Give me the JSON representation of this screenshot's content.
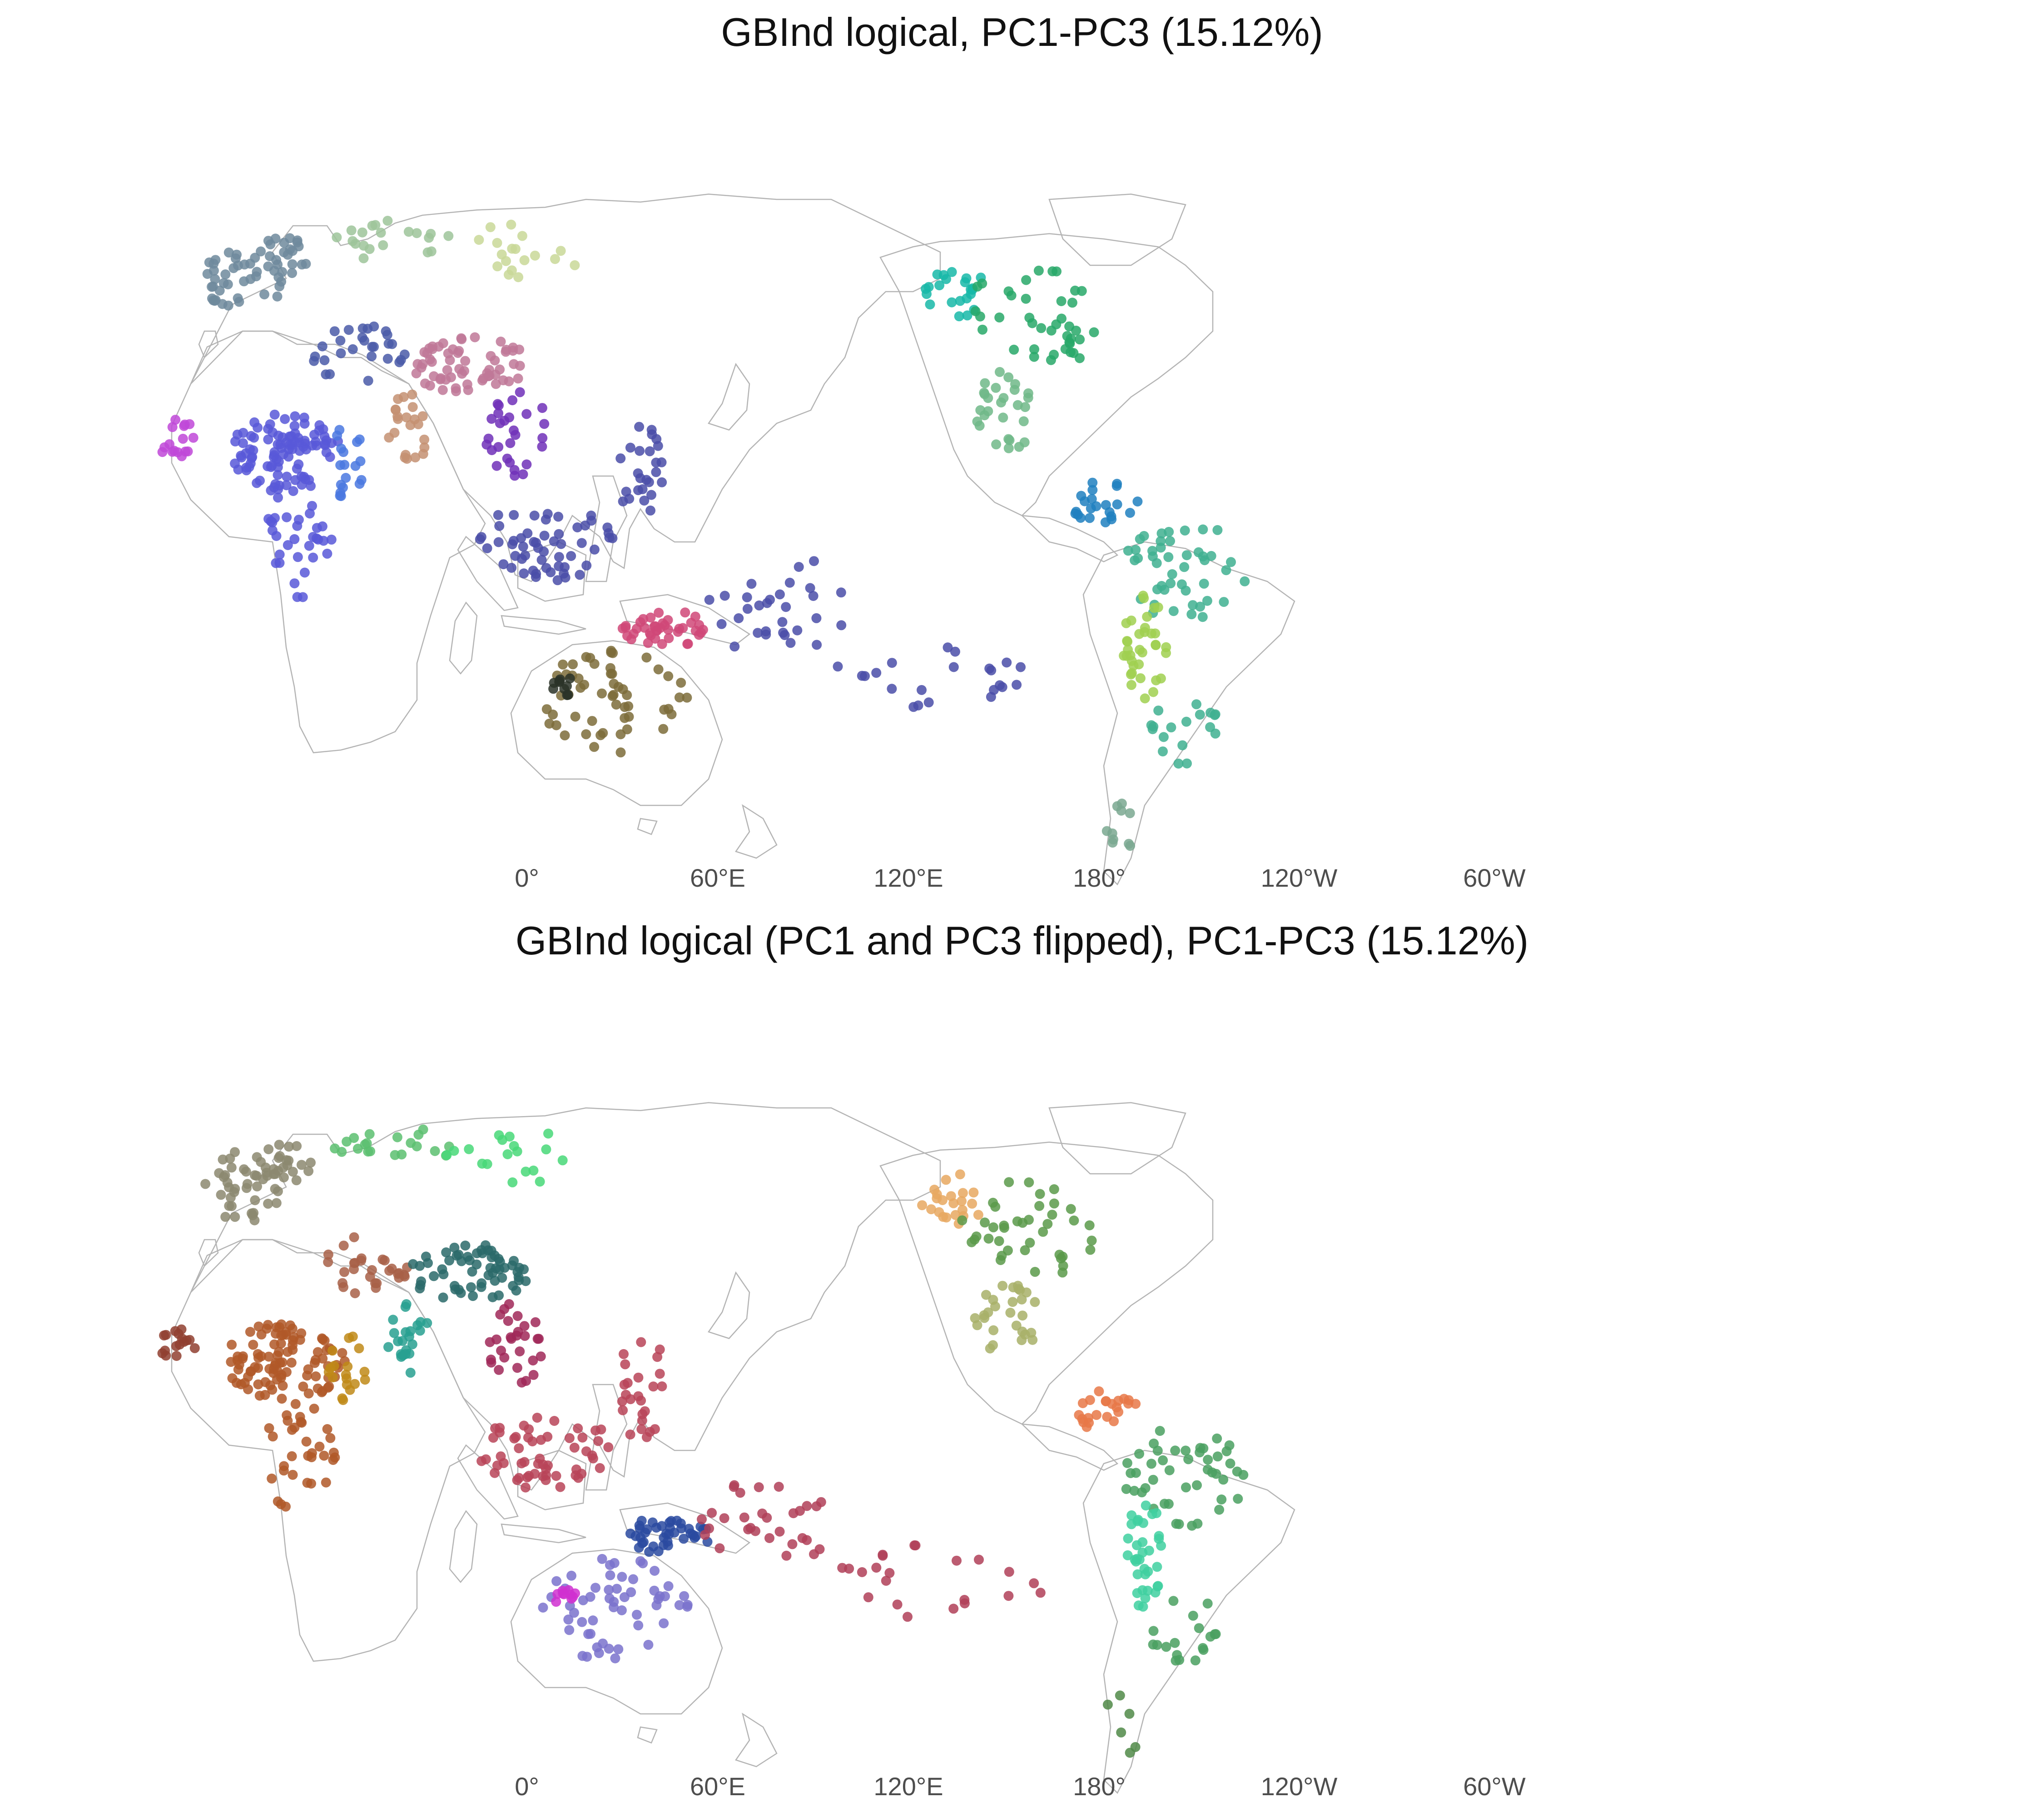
{
  "maps": [
    {
      "title": "GBInd logical, PC1-PC3 (15.12%)",
      "lon_ticks": [
        "0°",
        "60°E",
        "120°E",
        "180°",
        "120°W",
        "60°W"
      ],
      "palette": {
        "europe": "#6e8a9c",
        "north_eurasia": "#9ec49a",
        "siberia": "#c9d898",
        "west_africa": "#c048d8",
        "central_africa": "#5858d8",
        "east_africa": "#4a78e0",
        "near_east": "#4a5aa8",
        "south_asia": "#c49072",
        "east_asia": "#c07898",
        "mainland_se_asia": "#7030b8",
        "island_se_asia": "#4a4ea8",
        "new_guinea": "#d04878",
        "pacific": "#4a4ea8",
        "australia": "#7c6c3a",
        "australia_north": "#2a3228",
        "nw_america": "#18b8a8",
        "north_america": "#28a868",
        "mesoamerica": "#70b888",
        "central_america": "#2080c0",
        "south_america": "#40b090",
        "andes": "#a0d050",
        "patagonia": "#7aa890",
        "land_outline": "#b4b4b4"
      }
    },
    {
      "title": "GBInd logical (PC1 and PC3 flipped), PC1-PC3 (15.12%)",
      "lon_ticks": [
        "0°",
        "60°E",
        "120°E",
        "180°",
        "120°W",
        "60°W"
      ],
      "palette": {
        "europe": "#8c8870",
        "north_eurasia": "#5cc070",
        "siberia": "#48d878",
        "west_africa": "#904030",
        "central_africa": "#b05828",
        "east_africa": "#c08a18",
        "near_east": "#a86048",
        "south_asia": "#28a090",
        "east_asia": "#2a6a6a",
        "mainland_se_asia": "#a02858",
        "island_se_asia": "#b84458",
        "new_guinea": "#2a4aa0",
        "pacific": "#b04058",
        "australia": "#7a72cc",
        "australia_north": "#d030d0",
        "nw_america": "#e8a860",
        "north_america": "#5a9a4a",
        "mesoamerica": "#a8b068",
        "central_america": "#e87848",
        "south_america": "#4aa060",
        "andes": "#40d0a0",
        "patagonia": "#508a48",
        "land_outline": "#b4b4b4"
      }
    }
  ]
}
